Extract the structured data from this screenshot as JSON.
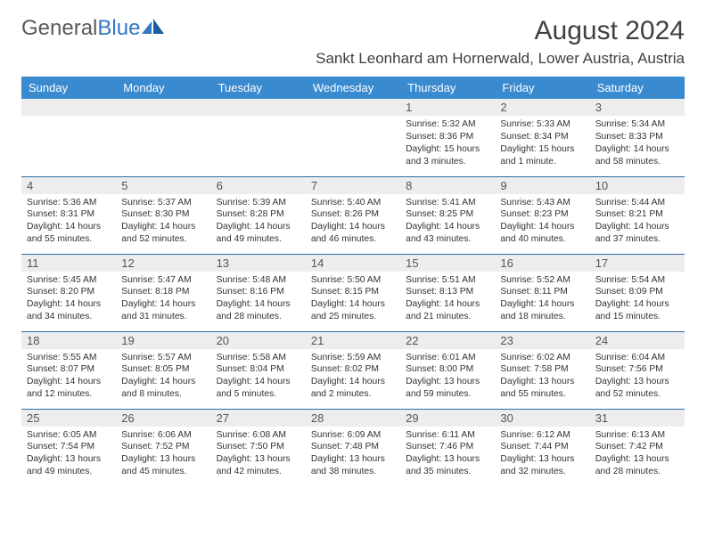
{
  "logo": {
    "part1": "General",
    "part2": "Blue"
  },
  "title": "August 2024",
  "location": "Sankt Leonhard am Hornerwald, Lower Austria, Austria",
  "columns": [
    "Sunday",
    "Monday",
    "Tuesday",
    "Wednesday",
    "Thursday",
    "Friday",
    "Saturday"
  ],
  "colors": {
    "header_bg": "#3a8ad0",
    "header_text": "#ffffff",
    "daynum_bg": "#ededed",
    "row_border": "#2f6aa8",
    "logo_gray": "#5a5a5a",
    "logo_blue": "#2f78c3",
    "text": "#333333"
  },
  "weeks": [
    [
      null,
      null,
      null,
      null,
      {
        "n": "1",
        "rise": "5:32 AM",
        "set": "8:36 PM",
        "dl": "15 hours and 3 minutes."
      },
      {
        "n": "2",
        "rise": "5:33 AM",
        "set": "8:34 PM",
        "dl": "15 hours and 1 minute."
      },
      {
        "n": "3",
        "rise": "5:34 AM",
        "set": "8:33 PM",
        "dl": "14 hours and 58 minutes."
      }
    ],
    [
      {
        "n": "4",
        "rise": "5:36 AM",
        "set": "8:31 PM",
        "dl": "14 hours and 55 minutes."
      },
      {
        "n": "5",
        "rise": "5:37 AM",
        "set": "8:30 PM",
        "dl": "14 hours and 52 minutes."
      },
      {
        "n": "6",
        "rise": "5:39 AM",
        "set": "8:28 PM",
        "dl": "14 hours and 49 minutes."
      },
      {
        "n": "7",
        "rise": "5:40 AM",
        "set": "8:26 PM",
        "dl": "14 hours and 46 minutes."
      },
      {
        "n": "8",
        "rise": "5:41 AM",
        "set": "8:25 PM",
        "dl": "14 hours and 43 minutes."
      },
      {
        "n": "9",
        "rise": "5:43 AM",
        "set": "8:23 PM",
        "dl": "14 hours and 40 minutes."
      },
      {
        "n": "10",
        "rise": "5:44 AM",
        "set": "8:21 PM",
        "dl": "14 hours and 37 minutes."
      }
    ],
    [
      {
        "n": "11",
        "rise": "5:45 AM",
        "set": "8:20 PM",
        "dl": "14 hours and 34 minutes."
      },
      {
        "n": "12",
        "rise": "5:47 AM",
        "set": "8:18 PM",
        "dl": "14 hours and 31 minutes."
      },
      {
        "n": "13",
        "rise": "5:48 AM",
        "set": "8:16 PM",
        "dl": "14 hours and 28 minutes."
      },
      {
        "n": "14",
        "rise": "5:50 AM",
        "set": "8:15 PM",
        "dl": "14 hours and 25 minutes."
      },
      {
        "n": "15",
        "rise": "5:51 AM",
        "set": "8:13 PM",
        "dl": "14 hours and 21 minutes."
      },
      {
        "n": "16",
        "rise": "5:52 AM",
        "set": "8:11 PM",
        "dl": "14 hours and 18 minutes."
      },
      {
        "n": "17",
        "rise": "5:54 AM",
        "set": "8:09 PM",
        "dl": "14 hours and 15 minutes."
      }
    ],
    [
      {
        "n": "18",
        "rise": "5:55 AM",
        "set": "8:07 PM",
        "dl": "14 hours and 12 minutes."
      },
      {
        "n": "19",
        "rise": "5:57 AM",
        "set": "8:05 PM",
        "dl": "14 hours and 8 minutes."
      },
      {
        "n": "20",
        "rise": "5:58 AM",
        "set": "8:04 PM",
        "dl": "14 hours and 5 minutes."
      },
      {
        "n": "21",
        "rise": "5:59 AM",
        "set": "8:02 PM",
        "dl": "14 hours and 2 minutes."
      },
      {
        "n": "22",
        "rise": "6:01 AM",
        "set": "8:00 PM",
        "dl": "13 hours and 59 minutes."
      },
      {
        "n": "23",
        "rise": "6:02 AM",
        "set": "7:58 PM",
        "dl": "13 hours and 55 minutes."
      },
      {
        "n": "24",
        "rise": "6:04 AM",
        "set": "7:56 PM",
        "dl": "13 hours and 52 minutes."
      }
    ],
    [
      {
        "n": "25",
        "rise": "6:05 AM",
        "set": "7:54 PM",
        "dl": "13 hours and 49 minutes."
      },
      {
        "n": "26",
        "rise": "6:06 AM",
        "set": "7:52 PM",
        "dl": "13 hours and 45 minutes."
      },
      {
        "n": "27",
        "rise": "6:08 AM",
        "set": "7:50 PM",
        "dl": "13 hours and 42 minutes."
      },
      {
        "n": "28",
        "rise": "6:09 AM",
        "set": "7:48 PM",
        "dl": "13 hours and 38 minutes."
      },
      {
        "n": "29",
        "rise": "6:11 AM",
        "set": "7:46 PM",
        "dl": "13 hours and 35 minutes."
      },
      {
        "n": "30",
        "rise": "6:12 AM",
        "set": "7:44 PM",
        "dl": "13 hours and 32 minutes."
      },
      {
        "n": "31",
        "rise": "6:13 AM",
        "set": "7:42 PM",
        "dl": "13 hours and 28 minutes."
      }
    ]
  ]
}
